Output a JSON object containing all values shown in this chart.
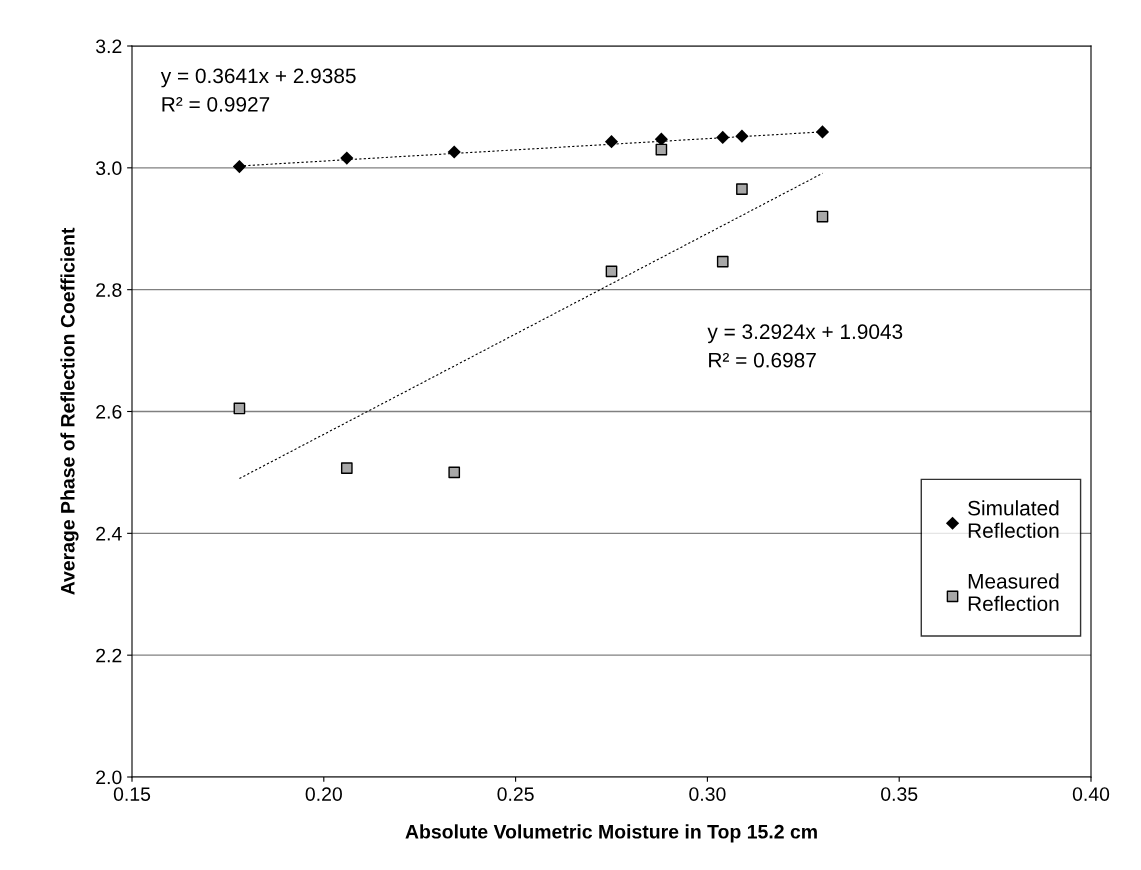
{
  "chart_data": {
    "type": "scatter",
    "xlabel": "Absolute Volumetric Moisture in Top 15.2 cm",
    "ylabel": "Average Phase of Reflection Coefficient",
    "xlim": [
      0.15,
      0.4
    ],
    "xticks": [
      {
        "value": 0.15,
        "label": "0.15"
      },
      {
        "value": 0.2,
        "label": "0.20"
      },
      {
        "value": 0.25,
        "label": "0.25"
      },
      {
        "value": 0.3,
        "label": "0.30"
      },
      {
        "value": 0.35,
        "label": "0.35"
      },
      {
        "value": 0.4,
        "label": "0.40"
      }
    ],
    "ylim": [
      2.0,
      3.2
    ],
    "yticks": [
      {
        "value": 2.0,
        "label": "2.0"
      },
      {
        "value": 2.2,
        "label": "2.2"
      },
      {
        "value": 2.4,
        "label": "2.4"
      },
      {
        "value": 2.6,
        "label": "2.6"
      },
      {
        "value": 2.8,
        "label": "2.8"
      },
      {
        "value": 3.0,
        "label": "3.0"
      },
      {
        "value": 3.2,
        "label": "3.2"
      }
    ],
    "grid": "y",
    "legend": "right",
    "series": [
      {
        "name": "Simulated\nReflection",
        "color": "#000000",
        "marker": "diamond",
        "x": [
          0.178,
          0.206,
          0.234,
          0.275,
          0.288,
          0.304,
          0.309,
          0.33
        ],
        "values": [
          3.002,
          3.016,
          3.026,
          3.043,
          3.047,
          3.05,
          3.052,
          3.059
        ]
      },
      {
        "name": "Measured\nReflection",
        "color": "#a8a8a8",
        "marker": "square",
        "x": [
          0.178,
          0.206,
          0.234,
          0.275,
          0.288,
          0.304,
          0.309,
          0.33
        ],
        "values": [
          2.605,
          2.507,
          2.5,
          2.83,
          3.03,
          2.846,
          2.965,
          2.92
        ]
      },
      {
        "type": "line",
        "color": "#000000",
        "line_style": "dotted",
        "marker": "none",
        "x": [
          0.178,
          0.33
        ],
        "values": [
          3.003,
          3.059
        ]
      },
      {
        "type": "line",
        "color": "#000000",
        "line_style": "dotted",
        "marker": "none",
        "x": [
          0.178,
          0.33
        ],
        "values": [
          2.49,
          2.991
        ]
      }
    ],
    "annotations": [
      "y = 0.3641x + 2.9385\nR² = 0.9927",
      "y = 3.2924x + 1.9043\nR² = 0.6987"
    ]
  }
}
